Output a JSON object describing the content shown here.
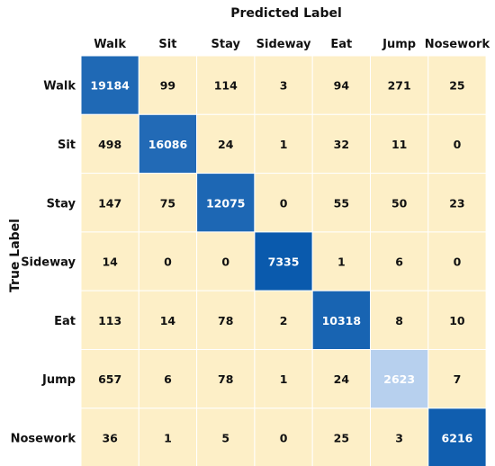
{
  "chart_data": {
    "type": "heatmap",
    "title": "",
    "xlabel": "Predicted Label",
    "ylabel": "True Label",
    "x_categories": [
      "Walk",
      "Sit",
      "Stay",
      "Sideway",
      "Eat",
      "Jump",
      "Nosework"
    ],
    "y_categories": [
      "Walk",
      "Sit",
      "Stay",
      "Sideway",
      "Eat",
      "Jump",
      "Nosework"
    ],
    "values": [
      [
        19184,
        99,
        114,
        3,
        94,
        271,
        25
      ],
      [
        498,
        16086,
        24,
        1,
        32,
        11,
        0
      ],
      [
        147,
        75,
        12075,
        0,
        55,
        50,
        23
      ],
      [
        14,
        0,
        0,
        7335,
        1,
        6,
        0
      ],
      [
        113,
        14,
        78,
        2,
        10318,
        8,
        10
      ],
      [
        657,
        6,
        78,
        1,
        24,
        2623,
        7
      ],
      [
        36,
        1,
        5,
        0,
        25,
        3,
        6216
      ]
    ],
    "colors": {
      "off_diagonal": "#fdefc7",
      "diagonal_dark": "#0a5aad",
      "diagonal_light": "#b7d0ee",
      "grid": "#ffffff",
      "dark_text": "#111111",
      "light_text": "#ffffff"
    },
    "x_axis_position": "top",
    "legend": "none"
  }
}
